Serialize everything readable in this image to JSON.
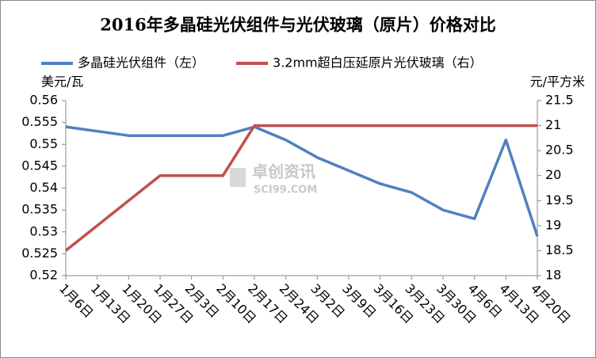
{
  "chart_data": {
    "type": "line",
    "title": "2016年多晶硅光伏组件与光伏玻璃（原片）价格对比",
    "y_label": "美元/瓦",
    "y2_label": "元/平方米",
    "watermark": [
      "卓创资讯",
      "SCI99.COM"
    ],
    "categories": [
      "1月6日",
      "1月13日",
      "1月20日",
      "1月27日",
      "2月3日",
      "2月10日",
      "2月17日",
      "2月24日",
      "3月2日",
      "3月9日",
      "3月16日",
      "3月23日",
      "3月30日",
      "4月6日",
      "4月13日",
      "4月20日"
    ],
    "series": [
      {
        "name": "多晶硅光伏组件（左）",
        "color": "#4f81bd",
        "values": [
          0.554,
          0.553,
          0.552,
          0.552,
          0.552,
          0.552,
          0.554,
          0.551,
          0.547,
          0.544,
          0.541,
          0.539,
          0.535,
          0.533,
          0.551,
          0.529
        ]
      },
      {
        "name": "3.2mm超白压延原片光伏玻璃（右）",
        "color": "#c0504d",
        "axis": "y2",
        "values": [
          18.5,
          19,
          19.5,
          20,
          20,
          20,
          21,
          21,
          21,
          21,
          21,
          21,
          21,
          21,
          21,
          21
        ]
      }
    ],
    "ylim": [
      0.52,
      0.56
    ],
    "yticks": [
      0.52,
      0.525,
      0.53,
      0.535,
      0.54,
      0.545,
      0.55,
      0.555,
      0.56
    ],
    "y2lim": [
      18,
      21.5
    ],
    "y2ticks": [
      18,
      18.5,
      19,
      19.5,
      20,
      20.5,
      21,
      21.5
    ],
    "legend": "top",
    "grid": false
  }
}
